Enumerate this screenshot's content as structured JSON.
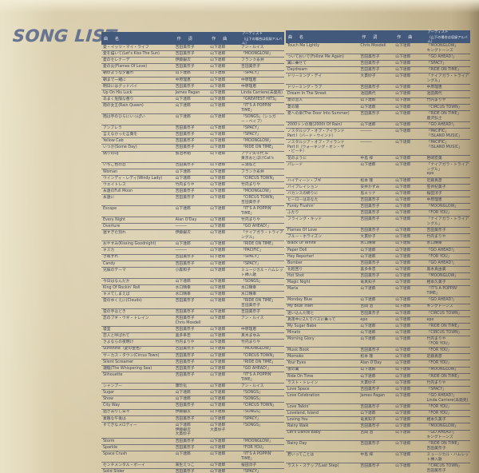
{
  "page_title": "SONG LIST",
  "headers": {
    "col_title": "曲　名",
    "col_lyrics": "作　詞",
    "col_music": "作　曲",
    "col_artist1": "アーティスト",
    "col_artist2": "（山下の場合は収録アルバム）"
  },
  "left_rows": [
    {
      "t": "愛・イッツ・マイ・ライフ",
      "w": "吉田美奈子",
      "c": "山下達郎",
      "a": "アン・ルイス"
    },
    {
      "t": "愛を描いて(Let's Kiss The Sun)",
      "w": "吉田美奈子",
      "c": "山下達郎",
      "a": "「MOONGLOW」"
    },
    {
      "t": "愛のセレナーデ",
      "w": "伊藤銀次",
      "c": "山下達郎",
      "a": "フランク永井"
    },
    {
      "t": "愛の炎(Flames Of Love)",
      "w": "吉田美奈子",
      "c": "山下達郎",
      "a": "吉田美奈子"
    },
    {
      "t": "朝のような夕暮れ",
      "w": "山下達郎",
      "c": "山下達郎",
      "a": "「SPACY」"
    },
    {
      "t": "朝まで一緒に",
      "w": "中原理恵",
      "c": "山下達郎",
      "a": "中原理恵"
    },
    {
      "t": "明日にはグッドバイ",
      "w": "吉田美奈子",
      "c": "山下達郎",
      "a": "中原理恵"
    },
    {
      "t": "Up On His Luck",
      "w": "James Pagan",
      "c": "山下達郎",
      "a": "Linda Carriere(未発売)"
    },
    {
      "t": "あまく危険な香り",
      "w": "山下達郎",
      "c": "山下達郎",
      "a": "「GREATEST HITS」"
    },
    {
      "t": "雨の女王(Rain Queen)",
      "w": "山下達郎",
      "c": "山下達郎",
      "a": "「IT'S A POPPIN' TIME」"
    },
    {
      "t": "雨は手のひらにいっぱい",
      "w": "山下達郎",
      "c": "山下達郎",
      "a": "「SONGS」（シュガー・ベイブ）"
    },
    {
      "t": "アンブレラ",
      "w": "吉田美奈子",
      "c": "山下達郎",
      "a": "「SPACY」"
    },
    {
      "t": "言えなかった言葉を",
      "w": "吉田美奈子",
      "c": "山下達郎",
      "a": "「SPACY」"
    },
    {
      "t": "Yellow Cab",
      "w": "吉田美奈子",
      "c": "山下達郎",
      "a": "「MOONGLOW」"
    },
    {
      "t": "いつか(Some Day)",
      "w": "吉田美奈子",
      "c": "山下達郎",
      "a": "「RIDE ON TIME」"
    },
    {
      "t": "偽りのDJ",
      "w": "加治木剛",
      "c": "山下達郎",
      "a": "アディ矢千代 &\n東京おとぼけCat's"
    },
    {
      "t": "いちご色の恋",
      "w": "吉田美奈子",
      "c": "山下達郎",
      "a": "三浦弘と"
    },
    {
      "t": "Woman",
      "w": "山下達郎",
      "c": "山下達郎",
      "a": "フランク永井"
    },
    {
      "t": "ウインディ・レディ(Windy Lady)",
      "w": "山下達郎",
      "c": "山下達郎",
      "a": "「CIRCUS TOWN」"
    },
    {
      "t": "ウエイトレス",
      "w": "竹内まりや",
      "c": "山下達郎",
      "a": "竹内まりや"
    },
    {
      "t": "永遠のFull Moon",
      "w": "吉田美奈子",
      "c": "山下達郎",
      "a": "「MOONGLOW」"
    },
    {
      "t": "永遠に",
      "w": "吉田美奈子",
      "c": "山下達郎",
      "a": "「CIRCUS TOWN」\n吉田美奈子"
    },
    {
      "t": "Escape",
      "w": "山下達郎",
      "c": "山下達郎",
      "a": "「IT'S A POPPIN' TIME」"
    },
    {
      "t": "Every Night",
      "w": "Alan O'Day",
      "c": "山下達郎",
      "a": "竹内まりや"
    },
    {
      "t": "Overture",
      "w": "―――",
      "c": "山下達郎",
      "a": "「GO AHEAD!」"
    },
    {
      "t": "遅すぎた別れ",
      "w": "伊藤銀次",
      "c": "山下達郎",
      "a": "「ナイアガラ・トライアングル」"
    },
    {
      "t": "おやすみ(Kissing Goodnight)",
      "w": "山下達郎",
      "c": "山下達郎",
      "a": "「RIDE ON TIME」"
    },
    {
      "t": "キスカ",
      "w": "―――",
      "c": "山下達郎",
      "a": "「PACIFIC」"
    },
    {
      "t": "きぬずれ",
      "w": "吉田美奈子",
      "c": "山下達郎",
      "a": "「SPACY」"
    },
    {
      "t": "Candy",
      "w": "吉田美奈子",
      "c": "山下達郎",
      "a": "「SPACY」"
    },
    {
      "t": "兄妹のテーマ",
      "w": "小森和子",
      "c": "山下達郎",
      "a": "ミュージカル・ハムレット挿入歌"
    },
    {
      "t": "今日はなんだか",
      "w": "山下達郎",
      "c": "山下達郎",
      "a": "「SONGS」"
    },
    {
      "t": "King Of Rockin' Roll",
      "w": "水口晴幸",
      "c": "山下達郎",
      "a": "水口晴幸"
    },
    {
      "t": "キメてしまえば",
      "w": "水口晴幸",
      "c": "山下達郎",
      "a": "水口晴幸"
    },
    {
      "t": "雲のゆくえに(Clouds)",
      "w": "吉田美奈子",
      "c": "山下達郎",
      "a": "「RIDE ON TIME」\n吉田美奈子"
    },
    {
      "t": "雲の手ほどき",
      "w": "吉田美奈子",
      "c": "山下達郎",
      "a": "吉田美奈子"
    },
    {
      "t": "恋のブギ・ウギ・トレイン",
      "w": "吉田美奈子\nChris Mosdell",
      "c": "山下達郎",
      "a": "アン・ルイス"
    },
    {
      "t": "寝室",
      "w": "吉田美奈子",
      "c": "山下達郎",
      "a": "中原理恵"
    },
    {
      "t": "恋人と呼ばれて",
      "w": "喜多条忠",
      "c": "山下達郎",
      "a": "真木まゆみ"
    },
    {
      "t": "さよならの夜明け",
      "w": "竹内まりや",
      "c": "山下達郎",
      "a": "竹内まりや"
    },
    {
      "t": "Sunshine（愛の金色）",
      "w": "吉田美奈子",
      "c": "山下達郎",
      "a": "「MOONGLOW」"
    },
    {
      "t": "サーカス・タウン(Circus Town)",
      "w": "吉田美奈子",
      "c": "山下達郎",
      "a": "「CIRCUS TOWN」"
    },
    {
      "t": "Silent Screamer",
      "w": "吉田美奈子",
      "c": "山下達郎",
      "a": "「RIDE ON TIME」"
    },
    {
      "t": "潮騒(The Whispering Sea)",
      "w": "吉田美奈子",
      "c": "山下達郎",
      "a": "「GO AHEAD!」"
    },
    {
      "t": "Silhouette",
      "w": "吉田美奈子",
      "c": "山下達郎",
      "a": "「IT'S A POPPIN' TIME」"
    },
    {
      "t": "シャンプー",
      "w": "康珍化",
      "c": "山下達郎",
      "a": "アン・ルイス"
    },
    {
      "t": "Sugar",
      "w": "山下達郎",
      "c": "山下達郎",
      "a": "「SONGS」"
    },
    {
      "t": "Show",
      "w": "山下達郎",
      "c": "山下達郎",
      "a": "「SONGS」"
    },
    {
      "t": "City Way",
      "w": "吉田美奈子",
      "c": "山下達郎",
      "a": "「CIRCUS TOWN」"
    },
    {
      "t": "過ぎ去りし日々",
      "w": "伊藤銀次",
      "c": "山下達郎",
      "a": "「SONGS」"
    },
    {
      "t": "素敵な午後は",
      "w": "吉田美奈子",
      "c": "山下達郎",
      "a": "「SPACY」"
    },
    {
      "t": "すてきなメロディー",
      "w": "山下達郎\n伊藤銀次\n大貫妙子",
      "c": "山下達郎\n大貫妙子",
      "a": "「SONGS」"
    },
    {
      "t": "Storm",
      "w": "吉田美奈子",
      "c": "山下達郎",
      "a": "「MOONGLOW」"
    },
    {
      "t": "Sparkle",
      "w": "吉田美奈子",
      "c": "山下達郎",
      "a": "「FOR YOU」"
    },
    {
      "t": "Space Crush",
      "w": "山下達郎",
      "c": "山下達郎",
      "a": "「IT'S A POPPIN' TIME」"
    },
    {
      "t": "センチメンタル・ボーイ",
      "w": "来生えつこ",
      "c": "山下達郎",
      "a": "桜田淳子"
    },
    {
      "t": "Solid Slider",
      "w": "吉田美奈子",
      "c": "山下達郎",
      "a": "「SPACY」"
    },
    {
      "t": "Down Town",
      "w": "伊藤銀次",
      "c": "山下達郎",
      "a": "「SONGS」\nepo"
    },
    {
      "t": "Dancer",
      "w": "山下達郎",
      "c": "山下達郎",
      "a": "「SPACY」"
    }
  ],
  "right_rows": [
    {
      "t": "Touch Me Lightly",
      "w": "Chris Mosdell",
      "c": "山下達郎",
      "a": "「MOONGLOW」\nキングトーンズ"
    },
    {
      "t": "ついておいで(Follow Me Again)",
      "w": "吉田美奈子",
      "c": "山下達郎",
      "a": "「GO AHEAD!」"
    },
    {
      "t": "翼に乗せて",
      "w": "吉田美奈子",
      "c": "山下達郎",
      "a": "「SPACY」"
    },
    {
      "t": "Daydream",
      "w": "吉田美奈子",
      "c": "山下達郎",
      "a": "「RIDE ON TIME」"
    },
    {
      "t": "ドリーミング・デイ",
      "w": "大貫妙子",
      "c": "山下達郎",
      "a": "「ナイアガラ・トライアングル」"
    },
    {
      "t": "ドリーミング・ラブ",
      "w": "吉田美奈子",
      "c": "山下達郎",
      "a": "中原理恵"
    },
    {
      "t": "Dream In The Street",
      "w": "池田典代",
      "c": "山下達郎",
      "a": "池田典代"
    },
    {
      "t": "夏の恋人",
      "w": "山下達郎",
      "c": "山下達郎",
      "a": "竹内まりや"
    },
    {
      "t": "夏の陽",
      "w": "山下達郎",
      "c": "山下達郎",
      "a": "「CIRCUS TOWN」"
    },
    {
      "t": "夏への扉(The Door Into Summer)",
      "w": "吉田美奈子",
      "c": "山下達郎",
      "a": "「RIDE ON TIME」\n鹿沢弘士"
    },
    {
      "t": "2000トンの雨(2000t Of Rain)",
      "w": "山下達郎",
      "c": "山下達郎",
      "a": "「GO AHEAD!」"
    },
    {
      "t": "ノスタルジア・オブ・アイランド\nPart I（バード・ウインド）",
      "w": "―――",
      "c": "山下達郎",
      "a": "「PACIFIC」\n「ISLAND MUSIC」"
    },
    {
      "t": "ノスタルジア・オブ・アイランド\nPart II（ウォーキング・オン・ザ\n・ビーチ）",
      "w": "―――",
      "c": "山下達郎",
      "a": "「PACIFIC」\n「ISLAND MUSIC」"
    },
    {
      "t": "花のように",
      "w": "中島 梓",
      "c": "山下達郎",
      "a": "岩崎宏美"
    },
    {
      "t": "パレード",
      "w": "山下達郎",
      "c": "山下達郎",
      "a": "「ナイアガラ・トライアングル」\nepo"
    },
    {
      "t": "ハイティーン・ブギ",
      "w": "松本 隆",
      "c": "山下達郎",
      "a": "近藤真彦"
    },
    {
      "t": "バイブレイション",
      "w": "安井かずみ",
      "c": "山下達郎",
      "a": "笠井紀美子"
    },
    {
      "t": "バカンスの終りに",
      "w": "島エリナ",
      "c": "山下達郎",
      "a": "桜田淳子"
    },
    {
      "t": "ヒーローはあなた",
      "w": "吉田美奈子",
      "c": "山下達郎",
      "a": "中原理恵"
    },
    {
      "t": "Funky Flushin'",
      "w": "吉田美奈子",
      "c": "山下達郎",
      "a": "「MOONGLOW」"
    },
    {
      "t": "ふたり",
      "w": "吉田美奈子",
      "c": "山下達郎",
      "a": "「FOR YOU」"
    },
    {
      "t": "フライング・キッド",
      "w": "吉田美奈子",
      "c": "山下達郎",
      "a": "「ナイアガラ・トライアングル」"
    },
    {
      "t": "Flames Of Love",
      "w": "吉田美奈子",
      "c": "山下達郎",
      "a": "吉田美奈子"
    },
    {
      "t": "ブルー・ホライズン",
      "w": "大貫妙子",
      "c": "山下達郎",
      "a": "竹内まりや"
    },
    {
      "t": "Black Or White",
      "w": "水口晴幸",
      "c": "山下達郎",
      "a": "水口晴幸"
    },
    {
      "t": "Paper Doll",
      "w": "山下達郎",
      "c": "山下達郎",
      "a": "「GO AHEAD!」"
    },
    {
      "t": "Hey Reporter!",
      "w": "山下達郎",
      "c": "山下達郎",
      "a": "「FOR YOU」"
    },
    {
      "t": "Bomber",
      "w": "吉田美奈子",
      "c": "山下達郎",
      "a": "「GO AHEAD!」"
    },
    {
      "t": "化粧回り",
      "w": "喜多条忠",
      "c": "山下達郎",
      "a": "黒木真由美"
    },
    {
      "t": "Hot Shot",
      "w": "吉田美奈子",
      "c": "山下達郎",
      "a": "「MOONGLOW」"
    },
    {
      "t": "Magic Night",
      "w": "竜真知子",
      "c": "山下達郎",
      "a": "相本久美子"
    },
    {
      "t": "Maria",
      "w": "山下達郎",
      "c": "山下達郎",
      "a": "「IT'S A POPPIN' TIME」"
    },
    {
      "t": "Monday Blue",
      "w": "山下達郎",
      "c": "山下達郎",
      "a": "「GO AHEAD!」"
    },
    {
      "t": "My Blue Train",
      "w": "吉岡 治",
      "c": "山下達郎",
      "a": "キングトーンズ"
    },
    {
      "t": "迷い込んだ街と",
      "w": "吉田美奈子",
      "c": "山下達郎",
      "a": "「CIRCUS TOWN」"
    },
    {
      "t": "真夜中に2人でバスに乗って",
      "w": "epo",
      "c": "山下達郎",
      "a": "epo"
    },
    {
      "t": "My Sugar Babe",
      "w": "山下達郎",
      "c": "山下達郎",
      "a": "「RIDE ON TIME」"
    },
    {
      "t": "Minato",
      "w": "山下達郎",
      "c": "山下達郎",
      "a": "「CIRCUS TOWN」"
    },
    {
      "t": "Morning Glory",
      "w": "山下達郎",
      "c": "山下達郎",
      "a": "竹内まりや\n「FOR YOU」"
    },
    {
      "t": "Music Book",
      "w": "吉田美奈子",
      "c": "山下達郎",
      "a": "「FOR YOU」"
    },
    {
      "t": "Momoko",
      "w": "松本 隆",
      "c": "山下達郎",
      "a": "近藤真彦"
    },
    {
      "t": "Your Eyes",
      "w": "Alan O'Day",
      "c": "山下達郎",
      "a": "「FOR YOU」"
    },
    {
      "t": "夜の翼",
      "w": "山下達郎",
      "c": "山下達郎",
      "a": "「MOONGLOW」"
    },
    {
      "t": "Ride On Time",
      "w": "山下達郎",
      "c": "山下達郎",
      "a": "「RIDE ON TIME」"
    },
    {
      "t": "ラスト・トレイン",
      "w": "大貫妙子",
      "c": "山下達郎",
      "a": "竹内まりや"
    },
    {
      "t": "Love Space",
      "w": "吉田美奈子",
      "c": "山下達郎",
      "a": "「SPACY」"
    },
    {
      "t": "Love Celebration",
      "w": "James Pagan",
      "c": "山下達郎",
      "a": "「GO AHEAD!」\nLinda Carriere(未発売)"
    },
    {
      "t": "Love Talkin'",
      "w": "吉田美奈子",
      "c": "山下達郎",
      "a": "「FOR YOU」"
    },
    {
      "t": "Loveland, Island",
      "w": "山下達郎",
      "c": "山下達郎",
      "a": "「FOR YOU」"
    },
    {
      "t": "Loving You",
      "w": "竜真知子",
      "c": "山下達郎",
      "a": "相本久美子"
    },
    {
      "t": "Rainy Walk",
      "w": "吉田美奈子",
      "c": "山下達郎",
      "a": "「MOONGLOW」"
    },
    {
      "t": "Let's Dance Baby",
      "w": "吉岡 治",
      "c": "山下達郎",
      "a": "「GO AHEAD!」\nキングトーンズ"
    },
    {
      "t": "Rainy Day",
      "w": "吉田美奈子",
      "c": "山下達郎",
      "a": "「RIDE ON TIME」\n吉田美奈子"
    },
    {
      "t": "若いってことは",
      "w": "中島 梓",
      "c": "山下達郎",
      "a": "ミュージカル・ハムレット挿入歌"
    },
    {
      "t": "ラスト・ステップ(Last Step)",
      "w": "吉田美奈子",
      "c": "山下達郎",
      "a": "「CIRCUS TOWN」\n吉田美奈子"
    }
  ],
  "colors": {
    "paper": "#d3c6a4",
    "header_bar": "#43597b",
    "row_text": "#3c425a",
    "title_text": "#687591"
  }
}
